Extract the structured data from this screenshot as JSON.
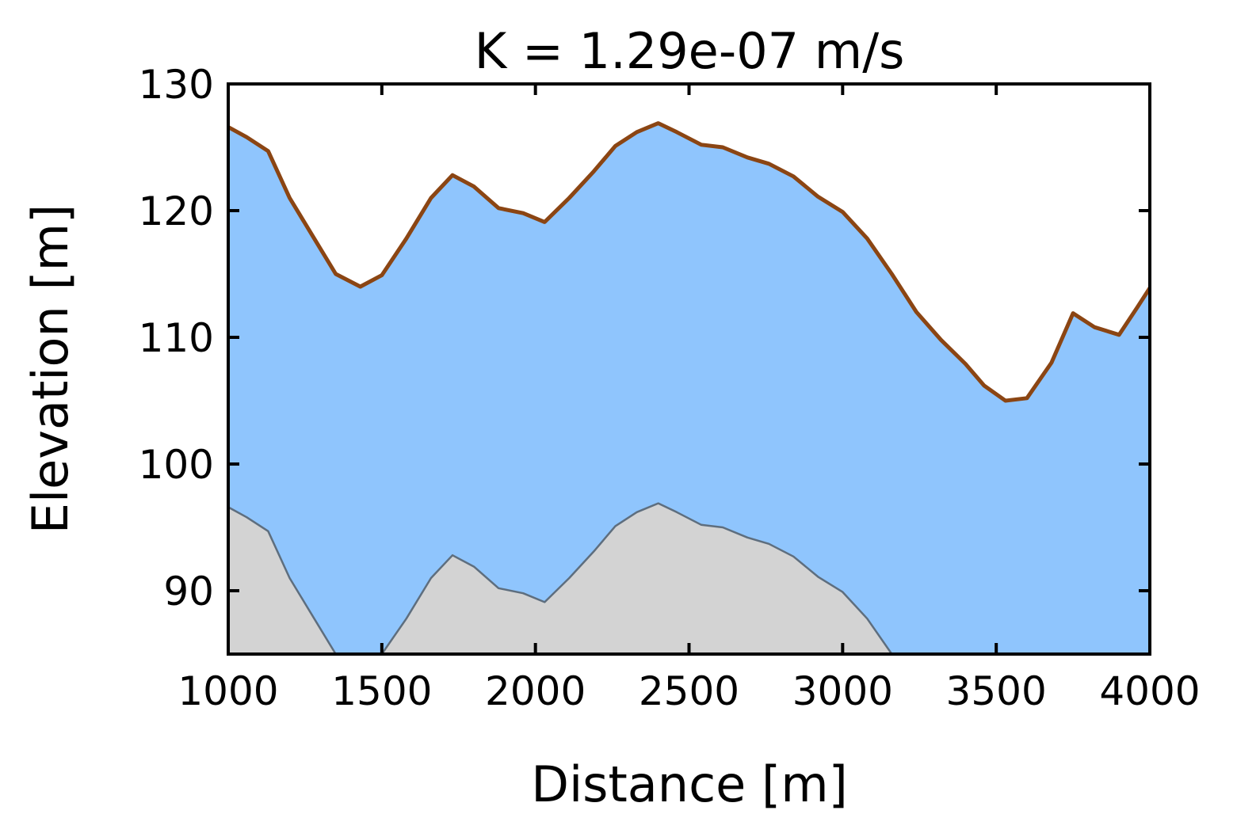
{
  "chart_data": {
    "type": "area",
    "title": "K = 1.29e-07 m/s",
    "xlabel": "Distance [m]",
    "ylabel": "Elevation [m]",
    "xlim": [
      1000,
      4000
    ],
    "ylim": [
      85,
      130
    ],
    "x_ticks": [
      1000,
      1500,
      2000,
      2500,
      3000,
      3500,
      4000
    ],
    "y_ticks": [
      90,
      100,
      110,
      120,
      130
    ],
    "x_tick_labels": [
      "1000",
      "1500",
      "2000",
      "2500",
      "3000",
      "3500",
      "4000"
    ],
    "y_tick_labels": [
      "90",
      "100",
      "110",
      "120",
      "130"
    ],
    "grid": false,
    "legend": "none",
    "x": [
      1000,
      1060,
      1130,
      1200,
      1280,
      1350,
      1430,
      1500,
      1580,
      1660,
      1730,
      1800,
      1880,
      1960,
      2030,
      2110,
      2190,
      2260,
      2330,
      2400,
      2460,
      2540,
      2610,
      2690,
      2760,
      2840,
      2920,
      3000,
      3080,
      3160,
      3240,
      3320,
      3400,
      3460,
      3530,
      3600,
      3680,
      3750,
      3820,
      3900,
      3960,
      4000
    ],
    "series": [
      {
        "values": [
          126.6,
          125.8,
          124.7,
          121.0,
          117.8,
          115.0,
          114.0,
          114.9,
          117.8,
          121.0,
          122.8,
          121.9,
          120.2,
          119.8,
          119.1,
          121.0,
          123.1,
          125.1,
          126.2,
          126.9,
          126.2,
          125.2,
          125.0,
          124.2,
          123.7,
          122.7,
          121.1,
          119.9,
          117.8,
          115.0,
          112.0,
          109.8,
          107.9,
          106.2,
          105.0,
          105.2,
          108.0,
          111.9,
          110.8,
          110.2,
          112.4,
          113.9
        ],
        "color": "#8fc5fd",
        "line_color": "#8b4513"
      },
      {
        "values": [
          96.6,
          95.8,
          94.7,
          91.0,
          87.8,
          85.0,
          85.0,
          85.0,
          87.8,
          91.0,
          92.8,
          91.9,
          90.2,
          89.8,
          89.1,
          91.0,
          93.1,
          95.1,
          96.2,
          96.9,
          96.2,
          95.2,
          95.0,
          94.2,
          93.7,
          92.7,
          91.1,
          89.9,
          87.8,
          85.0,
          85.0,
          85.0,
          85.0,
          85.0,
          85.0,
          85.0,
          85.0,
          85.0,
          85.0,
          85.0,
          85.0,
          85.0
        ],
        "color": "#d3d3d3",
        "line_color": "#5e6e7e"
      }
    ]
  }
}
